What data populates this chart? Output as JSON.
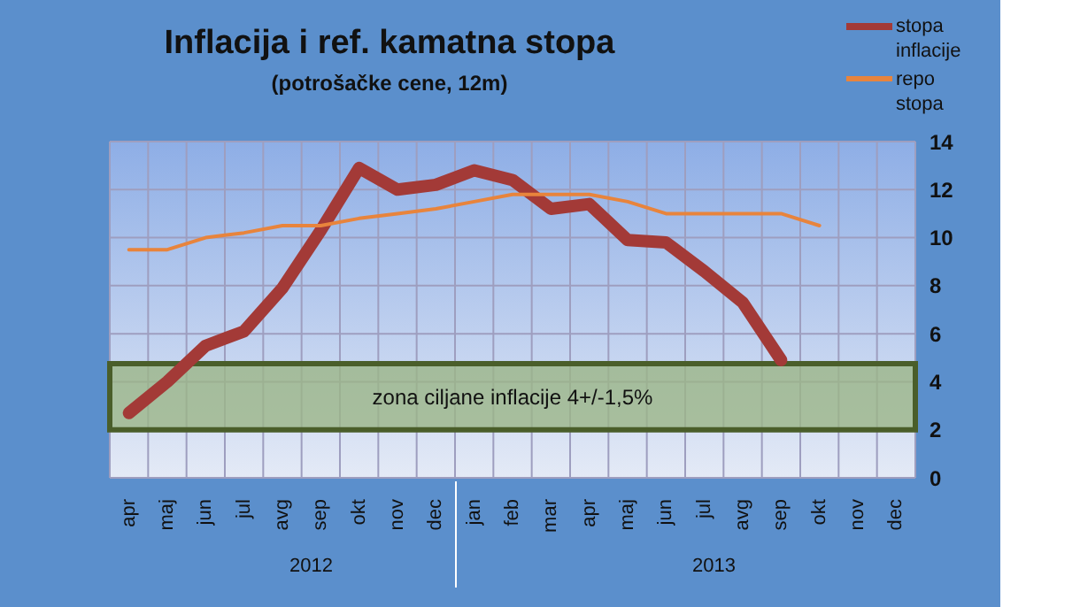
{
  "chart_data": {
    "type": "line",
    "title": "Inflacija i ref. kamatna stopa",
    "subtitle": "(potrošačke cene, 12m)",
    "categories": [
      "apr",
      "maj",
      "jun",
      "jul",
      "avg",
      "sep",
      "okt",
      "nov",
      "dec",
      "jan",
      "feb",
      "mar",
      "apr",
      "maj",
      "jun",
      "jul",
      "avg",
      "sep",
      "okt",
      "nov",
      "dec"
    ],
    "series": [
      {
        "name": "stopa inflacije",
        "color": "#a33a37",
        "values": [
          2.7,
          4.0,
          5.5,
          6.1,
          7.9,
          10.3,
          12.9,
          12.0,
          12.2,
          12.8,
          12.4,
          11.2,
          11.4,
          9.9,
          9.8,
          8.6,
          7.3,
          4.9,
          null,
          null,
          null
        ]
      },
      {
        "name": "repo stopa",
        "color": "#e8843c",
        "values": [
          9.5,
          9.5,
          10.0,
          10.2,
          10.5,
          10.5,
          10.8,
          11.0,
          11.2,
          11.5,
          11.8,
          11.8,
          11.8,
          11.5,
          11.0,
          11.0,
          11.0,
          11.0,
          10.5,
          null,
          null
        ]
      }
    ],
    "ylim": [
      0,
      14
    ],
    "yticks": [
      0,
      2,
      4,
      6,
      8,
      10,
      12,
      14
    ],
    "grid": true,
    "legend": "top right",
    "marker": "none",
    "line_style": "solid",
    "bands": [
      {
        "axis": "y",
        "from": 2,
        "to": 4.75,
        "label": "zona ciljane inflacije 4+/-1,5%",
        "color": "#9bb587"
      }
    ],
    "annotations": [
      "2012",
      "2013"
    ]
  }
}
